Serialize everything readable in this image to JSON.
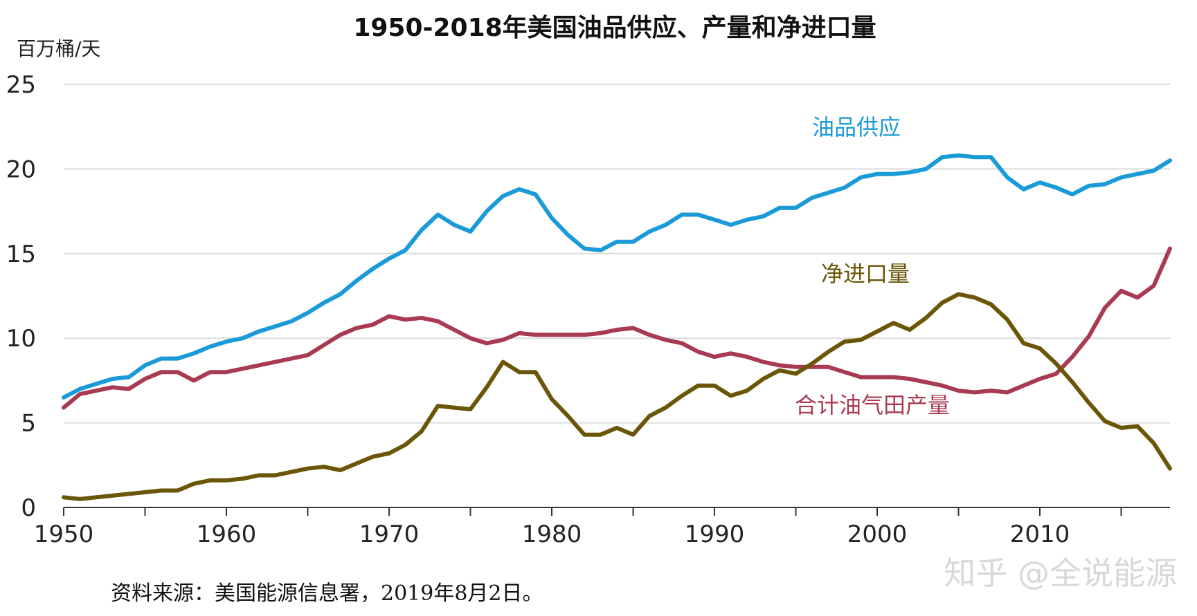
{
  "chart_data": {
    "type": "line",
    "title": "1950-2018年美国油品供应、产量和净进口量",
    "ylabel": "百万桶/天",
    "xlim": [
      1950,
      2018
    ],
    "ylim": [
      0,
      25
    ],
    "x_ticks": [
      1950,
      1960,
      1970,
      1980,
      1990,
      2000,
      2010
    ],
    "y_ticks": [
      0,
      5,
      10,
      15,
      20,
      25
    ],
    "grid": true,
    "x": [
      1950,
      1951,
      1952,
      1953,
      1954,
      1955,
      1956,
      1957,
      1958,
      1959,
      1960,
      1961,
      1962,
      1963,
      1964,
      1965,
      1966,
      1967,
      1968,
      1969,
      1970,
      1971,
      1972,
      1973,
      1974,
      1975,
      1976,
      1977,
      1978,
      1979,
      1980,
      1981,
      1982,
      1983,
      1984,
      1985,
      1986,
      1987,
      1988,
      1989,
      1990,
      1991,
      1992,
      1993,
      1994,
      1995,
      1996,
      1997,
      1998,
      1999,
      2000,
      2001,
      2002,
      2003,
      2004,
      2005,
      2006,
      2007,
      2008,
      2009,
      2010,
      2011,
      2012,
      2013,
      2014,
      2015,
      2016,
      2017,
      2018
    ],
    "series": [
      {
        "name": "油品供应",
        "color": "#1a9ad6",
        "label_x": 1173,
        "values": [
          6.5,
          7.0,
          7.3,
          7.6,
          7.7,
          8.4,
          8.8,
          8.8,
          9.1,
          9.5,
          9.8,
          10.0,
          10.4,
          10.7,
          11.0,
          11.5,
          12.1,
          12.6,
          13.4,
          14.1,
          14.7,
          15.2,
          16.4,
          17.3,
          16.7,
          16.3,
          17.5,
          18.4,
          18.8,
          18.5,
          17.1,
          16.1,
          15.3,
          15.2,
          15.7,
          15.7,
          16.3,
          16.7,
          17.3,
          17.3,
          17.0,
          16.7,
          17.0,
          17.2,
          17.7,
          17.7,
          18.3,
          18.6,
          18.9,
          19.5,
          19.7,
          19.7,
          19.8,
          20.0,
          20.7,
          20.8,
          20.7,
          20.7,
          19.5,
          18.8,
          19.2,
          18.9,
          18.5,
          19.0,
          19.1,
          19.5,
          19.7,
          19.9,
          20.5
        ]
      },
      {
        "name": "合计油气田产量",
        "color": "#a83a52",
        "label_x": 1148,
        "values": [
          5.9,
          6.7,
          6.9,
          7.1,
          7.0,
          7.6,
          8.0,
          8.0,
          7.5,
          8.0,
          8.0,
          8.2,
          8.4,
          8.6,
          8.8,
          9.0,
          9.6,
          10.2,
          10.6,
          10.8,
          11.3,
          11.1,
          11.2,
          11.0,
          10.5,
          10.0,
          9.7,
          9.9,
          10.3,
          10.2,
          10.2,
          10.2,
          10.2,
          10.3,
          10.5,
          10.6,
          10.2,
          9.9,
          9.7,
          9.2,
          8.9,
          9.1,
          8.9,
          8.6,
          8.4,
          8.3,
          8.3,
          8.3,
          8.0,
          7.7,
          7.7,
          7.7,
          7.6,
          7.4,
          7.2,
          6.9,
          6.8,
          6.9,
          6.8,
          7.2,
          7.6,
          7.9,
          8.9,
          10.1,
          11.8,
          12.8,
          12.4,
          13.1,
          15.3
        ]
      },
      {
        "name": "净进口量",
        "color": "#6b5608",
        "label_x": 1186,
        "values": [
          0.6,
          0.5,
          0.6,
          0.7,
          0.8,
          0.9,
          1.0,
          1.0,
          1.4,
          1.6,
          1.6,
          1.7,
          1.9,
          1.9,
          2.1,
          2.3,
          2.4,
          2.2,
          2.6,
          3.0,
          3.2,
          3.7,
          4.5,
          6.0,
          5.9,
          5.8,
          7.1,
          8.6,
          8.0,
          8.0,
          6.4,
          5.4,
          4.3,
          4.3,
          4.7,
          4.3,
          5.4,
          5.9,
          6.6,
          7.2,
          7.2,
          6.6,
          6.9,
          7.6,
          8.1,
          7.9,
          8.5,
          9.2,
          9.8,
          9.9,
          10.4,
          10.9,
          10.5,
          11.2,
          12.1,
          12.6,
          12.4,
          12.0,
          11.1,
          9.7,
          9.4,
          8.5,
          7.4,
          6.2,
          5.1,
          4.7,
          4.8,
          3.8,
          2.3
        ]
      }
    ],
    "source": "资料来源：美国能源信息署，2019年8月2日。"
  },
  "watermark": "知乎 @全说能源"
}
